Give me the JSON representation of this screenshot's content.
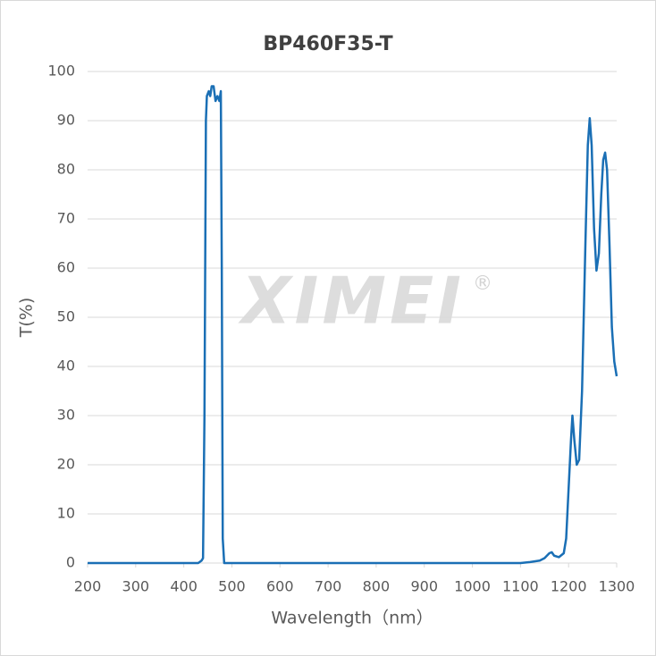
{
  "chart_data": {
    "type": "line",
    "title": "BP460F35-T",
    "xlabel": "Wavelength（nm）",
    "ylabel": "T(%)",
    "watermark": "XIMEI",
    "watermark_mark": "®",
    "x": [
      200,
      430,
      437,
      440,
      443,
      446,
      448,
      452,
      455,
      458,
      462,
      466,
      470,
      474,
      477,
      479,
      481,
      484,
      1100,
      1120,
      1140,
      1150,
      1160,
      1165,
      1170,
      1180,
      1190,
      1195,
      1200,
      1205,
      1208,
      1212,
      1217,
      1222,
      1228,
      1235,
      1240,
      1244,
      1248,
      1253,
      1258,
      1263,
      1268,
      1272,
      1276,
      1280,
      1285,
      1290,
      1295,
      1300
    ],
    "series": [
      {
        "name": "T",
        "color": "#1a6fb5",
        "values": [
          0,
          0,
          0.5,
          1,
          30,
          90,
          95,
          96,
          95,
          97,
          97,
          94,
          95,
          94,
          96,
          60,
          5,
          0,
          0,
          0.2,
          0.5,
          1,
          2,
          2.2,
          1.5,
          1.2,
          2,
          5,
          15,
          25,
          30,
          25,
          20,
          21,
          35,
          65,
          85,
          90.5,
          85,
          68,
          59.5,
          63,
          75,
          82,
          83.5,
          80,
          65,
          48,
          41,
          38
        ]
      }
    ],
    "xlim": [
      200,
      1300
    ],
    "xticks": [
      200,
      300,
      400,
      500,
      600,
      700,
      800,
      900,
      1000,
      1100,
      1200,
      1300
    ],
    "ylim": [
      0,
      100
    ],
    "yticks": [
      0,
      10,
      20,
      30,
      40,
      50,
      60,
      70,
      80,
      90,
      100
    ],
    "grid": true
  }
}
